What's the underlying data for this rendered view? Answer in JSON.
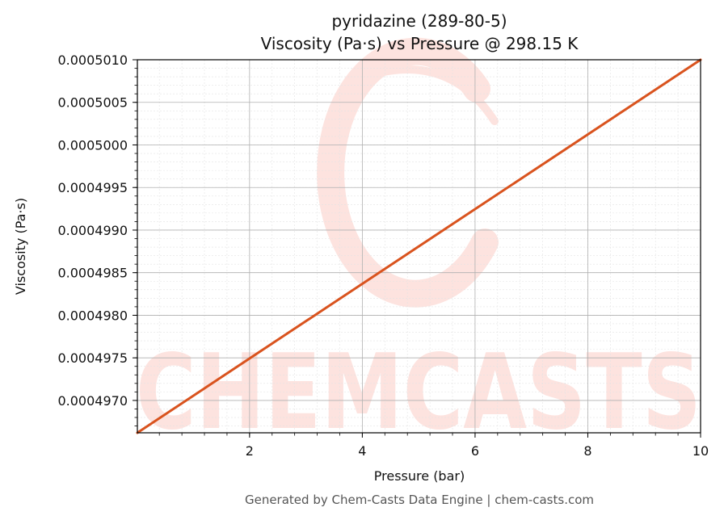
{
  "chart_data": {
    "type": "line",
    "title_line1": "pyridazine (289-80-5)",
    "title_line2": "Viscosity (Pa·s) vs Pressure @ 298.15 K",
    "xlabel": "Pressure (bar)",
    "ylabel": "Viscosity (Pa·s)",
    "xlim": [
      0.01,
      10
    ],
    "ylim": [
      0.00049662,
      0.000501
    ],
    "x_ticks": [
      2,
      4,
      6,
      8,
      10
    ],
    "x_tick_labels": [
      "2",
      "4",
      "6",
      "8",
      "10"
    ],
    "y_ticks": [
      0.000497,
      0.0004975,
      0.000498,
      0.0004985,
      0.000499,
      0.0004995,
      0.0005,
      0.0005005,
      0.000501
    ],
    "y_tick_labels": [
      "0.0004970",
      "0.0004975",
      "0.0004980",
      "0.0004985",
      "0.0004990",
      "0.0004995",
      "0.0005000",
      "0.0005005",
      "0.0005010"
    ],
    "grid": true,
    "series": [
      {
        "color": "#d9531e",
        "x": [
          0.01,
          10
        ],
        "y": [
          0.00049662,
          0.000501
        ]
      }
    ]
  },
  "watermark": {
    "text": "CHEMCASTS",
    "color": "#fde3df"
  },
  "footer": "Generated by Chem-Casts Data Engine | chem-casts.com"
}
